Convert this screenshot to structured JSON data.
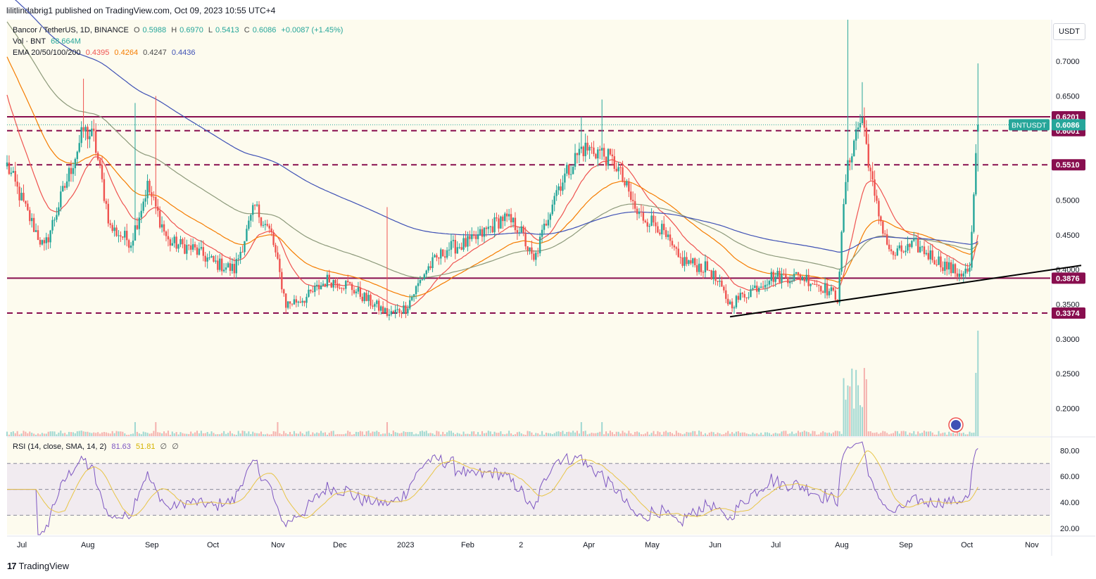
{
  "header": {
    "attribution": "lilitlindabrig1 published on TradingView.com, Oct 09, 2023 10:55 UTC+4"
  },
  "legend": {
    "symbol": "Bancor / TetherUS, 1D, BINANCE",
    "o_label": "O",
    "o_value": "0.5988",
    "h_label": "H",
    "h_value": "0.6970",
    "l_label": "L",
    "l_value": "0.5413",
    "c_label": "C",
    "c_value": "0.6086",
    "change": "+0.0087 (+1.45%)",
    "vol_label": "Vol · BNT",
    "vol_value": "68.664M",
    "ema_label": "EMA 20/50/100/200",
    "ema20": "0.4395",
    "ema50": "0.4264",
    "ema100": "0.4247",
    "ema200": "0.4436"
  },
  "rsi_legend": {
    "label": "RSI (14, close, SMA, 14, 2)",
    "rsi": "81.63",
    "sma": "51.81",
    "extra1": "∅",
    "extra2": "∅"
  },
  "currency": "USDT",
  "footer": {
    "brand": "TradingView",
    "mark": "17"
  },
  "colors": {
    "up": "#26a69a",
    "down": "#ef5350",
    "ema20": "#ef5350",
    "ema50": "#f57c00",
    "ema100": "#8d9a7b",
    "ema200": "#3f51b5",
    "level": "#880e4f",
    "rsi": "#7e57c2",
    "rsi_sma": "#e8c547"
  },
  "chart_data": [
    {
      "type": "candlestick",
      "title": "Bancor / TetherUS, 1D, BINANCE",
      "ylim": [
        0.16,
        0.76
      ],
      "y_ticks": [
        "0.7000",
        "0.6500",
        "0.6000",
        "0.5500",
        "0.5000",
        "0.4500",
        "0.4000",
        "0.3500",
        "0.3000",
        "0.2500",
        "0.2000"
      ],
      "y_tick_values": [
        0.7,
        0.65,
        0.6,
        0.55,
        0.5,
        0.45,
        0.4,
        0.35,
        0.3,
        0.25,
        0.2
      ],
      "x_labels": [
        "Jul",
        "Aug",
        "Sep",
        "Oct",
        "Nov",
        "Dec",
        "2023",
        "Feb",
        "2",
        "Apr",
        "May",
        "Jun",
        "Jul",
        "Aug",
        "Sep",
        "Oct",
        "Nov"
      ],
      "x_label_days": [
        0,
        31,
        62,
        92,
        123,
        153,
        184,
        215,
        243,
        274,
        304,
        335,
        365,
        396,
        427,
        457,
        488
      ],
      "total_days": 505,
      "last_day": 470,
      "horizontal_levels": [
        {
          "value": 0.6201,
          "label": "0.6201",
          "style": "solid"
        },
        {
          "value": 0.6001,
          "label": "0.6001",
          "style": "dashed"
        },
        {
          "value": 0.551,
          "label": "0.5510",
          "style": "dashed"
        },
        {
          "value": 0.3876,
          "label": "0.3876",
          "style": "solid"
        },
        {
          "value": 0.3374,
          "label": "0.3374",
          "style": "dashed"
        }
      ],
      "last_price": {
        "label": "BNTUSDT",
        "value": "0.6086",
        "y": 0.6086
      },
      "trendline": {
        "from": {
          "day": 350,
          "price": 0.332
        },
        "to": {
          "day": 520,
          "price": 0.406
        }
      },
      "close_anchors": [
        [
          0,
          0.55
        ],
        [
          10,
          0.48
        ],
        [
          18,
          0.43
        ],
        [
          28,
          0.52
        ],
        [
          37,
          0.6
        ],
        [
          42,
          0.59
        ],
        [
          50,
          0.46
        ],
        [
          60,
          0.44
        ],
        [
          68,
          0.52
        ],
        [
          78,
          0.44
        ],
        [
          90,
          0.43
        ],
        [
          100,
          0.41
        ],
        [
          110,
          0.4
        ],
        [
          120,
          0.49
        ],
        [
          128,
          0.45
        ],
        [
          135,
          0.35
        ],
        [
          145,
          0.36
        ],
        [
          155,
          0.385
        ],
        [
          165,
          0.378
        ],
        [
          175,
          0.355
        ],
        [
          185,
          0.335
        ],
        [
          193,
          0.345
        ],
        [
          203,
          0.4
        ],
        [
          213,
          0.43
        ],
        [
          225,
          0.44
        ],
        [
          240,
          0.475
        ],
        [
          248,
          0.46
        ],
        [
          255,
          0.41
        ],
        [
          265,
          0.51
        ],
        [
          278,
          0.575
        ],
        [
          287,
          0.57
        ],
        [
          295,
          0.55
        ],
        [
          305,
          0.48
        ],
        [
          315,
          0.465
        ],
        [
          325,
          0.415
        ],
        [
          340,
          0.4
        ],
        [
          350,
          0.35
        ],
        [
          360,
          0.37
        ],
        [
          370,
          0.39
        ],
        [
          385,
          0.39
        ],
        [
          395,
          0.375
        ],
        [
          402,
          0.36
        ],
        [
          406,
          0.53
        ],
        [
          410,
          0.59
        ],
        [
          414,
          0.62
        ],
        [
          420,
          0.5
        ],
        [
          428,
          0.42
        ],
        [
          440,
          0.435
        ],
        [
          452,
          0.41
        ],
        [
          460,
          0.395
        ],
        [
          466,
          0.398
        ],
        [
          470,
          0.6086
        ]
      ],
      "ema_endpoints": {
        "ema20": 0.4395,
        "ema50": 0.4264,
        "ema100": 0.4247,
        "ema200": 0.4436
      }
    },
    {
      "type": "line",
      "title": "RSI (14, close, SMA, 14, 2)",
      "ylim": [
        15,
        90
      ],
      "y_ticks": [
        "80.00",
        "60.00",
        "40.00",
        "20.00"
      ],
      "y_tick_values": [
        80,
        60,
        40,
        20
      ],
      "band": [
        30,
        70
      ],
      "mid": 50,
      "series": [
        {
          "name": "RSI",
          "last": 81.63
        },
        {
          "name": "SMA",
          "last": 51.81
        }
      ]
    }
  ]
}
